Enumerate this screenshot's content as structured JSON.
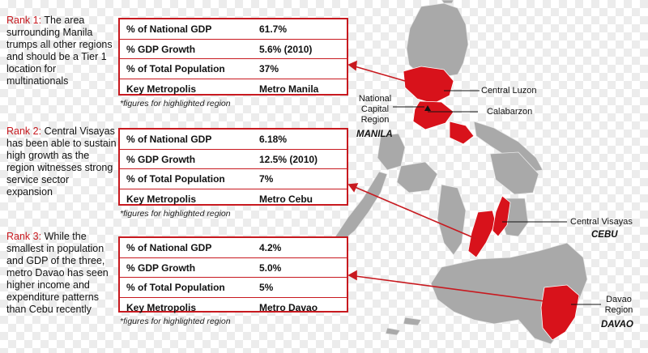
{
  "ranks": [
    {
      "label": "Rank 1",
      "text": "The area surrounding Manila trumps all other regions and should be a Tier 1 location for multinationals",
      "rows": [
        {
          "key": "% of National GDP",
          "value": "61.7%"
        },
        {
          "key": "% GDP Growth",
          "value": "5.6% (2010)"
        },
        {
          "key": "% of Total Population",
          "value": "37%"
        },
        {
          "key": "Key Metropolis",
          "value": "Metro Manila"
        }
      ],
      "note": "*figures for highlighted region"
    },
    {
      "label": "Rank 2",
      "text": "Central Visayas has been able to sustain high growth as the region witnesses strong service sector expansion",
      "rows": [
        {
          "key": "% of National GDP",
          "value": "6.18%"
        },
        {
          "key": "% GDP Growth",
          "value": "12.5% (2010)"
        },
        {
          "key": "% of Total Population",
          "value": "7%"
        },
        {
          "key": "Key Metropolis",
          "value": "Metro Cebu"
        }
      ],
      "note": "*figures for highlighted region"
    },
    {
      "label": "Rank 3",
      "text": "While the smallest in population and GDP of the three, metro Davao has seen higher income and expenditure patterns than Cebu recently",
      "rows": [
        {
          "key": "% of National GDP",
          "value": "4.2%"
        },
        {
          "key": "% GDP Growth",
          "value": "5.0%"
        },
        {
          "key": "% of Total Population",
          "value": "5%"
        },
        {
          "key": "Key Metropolis",
          "value": "Metro Davao"
        }
      ],
      "note": "*figures for highlighted region"
    }
  ],
  "map_labels": {
    "central_luzon": "Central Luzon",
    "ncr_line1": "National",
    "ncr_line2": "Capital",
    "ncr_line3": "Region",
    "calabarzon": "Calabarzon",
    "manila": "MANILA",
    "central_visayas": "Central Visayas",
    "cebu": "CEBU",
    "davao_line1": "Davao",
    "davao_line2": "Region",
    "davao": "DAVAO"
  },
  "colors": {
    "accent": "#c8191f",
    "map_grey": "#a9a9a9",
    "highlight": "#d8121b"
  }
}
